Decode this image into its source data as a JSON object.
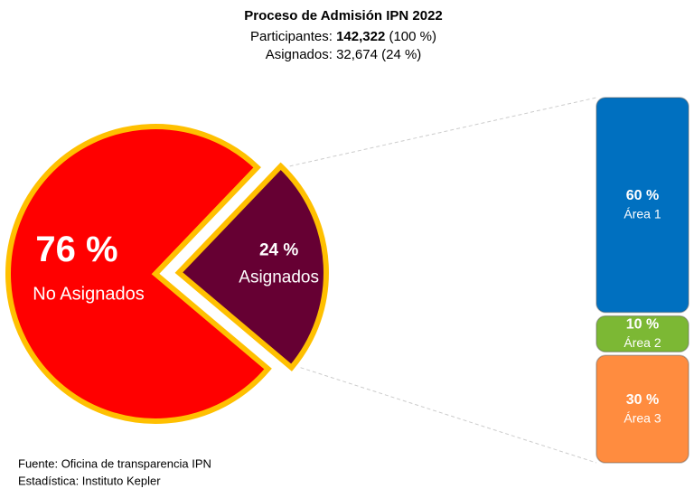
{
  "chart_data": {
    "type": "pie",
    "title": "Proceso de Admisión IPN 2022",
    "participants_text": "Participantes:",
    "participants_value": "142,322",
    "participants_share": "(100 %)",
    "assigned_text": "Asignados: 32,674 (24 %)",
    "categories": [
      "No Asignados",
      "Asignados"
    ],
    "values": [
      76,
      24
    ],
    "value_labels": [
      "76 %",
      "24 %"
    ],
    "colors": [
      "#ff0000",
      "#660033"
    ],
    "border_color": "#ffc000",
    "breakdown": {
      "categories": [
        "Área 1",
        "Área 2",
        "Área 3"
      ],
      "values": [
        60,
        10,
        30
      ],
      "value_labels": [
        "60 %",
        "10 %",
        "30 %"
      ],
      "colors": [
        "#0070c0",
        "#7cb834",
        "#ff8c3f"
      ]
    },
    "notes": [
      "Fuente: Oficina de transparencia IPN",
      "Estadística: Instituto Kepler"
    ]
  }
}
